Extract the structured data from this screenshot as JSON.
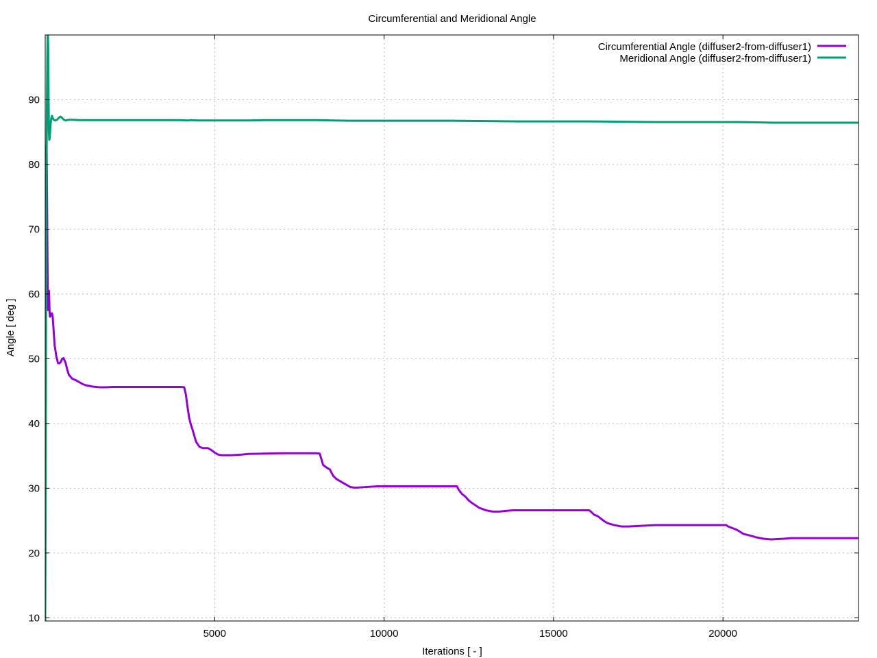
{
  "chart_data": {
    "type": "line",
    "title": "Circumferential and Meridional Angle",
    "xlabel": "Iterations [ - ]",
    "ylabel": "Angle [ deg ]",
    "xlim": [
      0,
      24000
    ],
    "ylim": [
      9.5,
      100
    ],
    "xticks": [
      5000,
      10000,
      15000,
      20000
    ],
    "yticks": [
      10,
      20,
      30,
      40,
      50,
      60,
      70,
      80,
      90
    ],
    "grid": true,
    "legend_position": "top-right",
    "series": [
      {
        "name": "Circumferential Angle (diffuser2-from-diffuser1)",
        "color": "#9400d3",
        "x": [
          0,
          10,
          20,
          30,
          40,
          50,
          60,
          70,
          80,
          90,
          100,
          110,
          120,
          130,
          140,
          150,
          160,
          170,
          180,
          200,
          220,
          240,
          280,
          330,
          380,
          420,
          460,
          500,
          540,
          600,
          650,
          700,
          750,
          800,
          900,
          1000,
          1100,
          1200,
          1400,
          1600,
          1800,
          2000,
          2500,
          3000,
          3500,
          4000,
          4100,
          4150,
          4200,
          4250,
          4300,
          4350,
          4450,
          4550,
          4650,
          4800,
          4900,
          5000,
          5100,
          5200,
          5500,
          5800,
          6000,
          6500,
          7000,
          7500,
          8000,
          8100,
          8150,
          8200,
          8300,
          8400,
          8450,
          8500,
          8600,
          8700,
          8800,
          8900,
          9000,
          9100,
          9200,
          9500,
          9800,
          10000,
          10500,
          11000,
          11500,
          12000,
          12100,
          12150,
          12200,
          12300,
          12350,
          12400,
          12500,
          12600,
          12800,
          13000,
          13200,
          13400,
          13600,
          13800,
          14000,
          14500,
          15000,
          15500,
          16000,
          16050,
          16100,
          16200,
          16300,
          16400,
          16500,
          16600,
          16800,
          17000,
          17200,
          17400,
          17600,
          17800,
          18000,
          18500,
          19000,
          19500,
          20000,
          20100,
          20150,
          20300,
          20400,
          20500,
          20600,
          20800,
          21000,
          21200,
          21400,
          21600,
          21800,
          22000,
          22500,
          23000,
          23500,
          24000
        ],
        "y": [
          23.5,
          50,
          72,
          82,
          83,
          78,
          70,
          63,
          58,
          57.5,
          58,
          60.5,
          59,
          57,
          56.5,
          56.5,
          57,
          57,
          56.8,
          57,
          56.5,
          55,
          52,
          50.3,
          49.3,
          49.3,
          49.5,
          50.0,
          50.1,
          49.4,
          48.3,
          47.5,
          47.2,
          46.9,
          46.7,
          46.4,
          46.1,
          45.9,
          45.7,
          45.6,
          45.6,
          45.65,
          45.65,
          45.65,
          45.65,
          45.65,
          45.6,
          44.5,
          42.5,
          40.8,
          39.8,
          39.0,
          37.2,
          36.4,
          36.2,
          36.2,
          35.9,
          35.5,
          35.2,
          35.1,
          35.1,
          35.2,
          35.3,
          35.35,
          35.4,
          35.4,
          35.4,
          35.35,
          34.5,
          33.6,
          33.2,
          32.9,
          32.4,
          31.9,
          31.4,
          31.1,
          30.8,
          30.5,
          30.2,
          30.1,
          30.1,
          30.2,
          30.3,
          30.3,
          30.3,
          30.3,
          30.3,
          30.3,
          30.3,
          30.3,
          29.8,
          29.1,
          28.9,
          28.7,
          28.1,
          27.7,
          27.0,
          26.6,
          26.4,
          26.4,
          26.5,
          26.6,
          26.6,
          26.6,
          26.6,
          26.6,
          26.6,
          26.6,
          26.4,
          25.9,
          25.7,
          25.3,
          24.9,
          24.6,
          24.3,
          24.1,
          24.1,
          24.15,
          24.2,
          24.25,
          24.3,
          24.3,
          24.3,
          24.3,
          24.3,
          24.3,
          24.1,
          23.8,
          23.6,
          23.3,
          22.95,
          22.7,
          22.4,
          22.2,
          22.1,
          22.15,
          22.2,
          22.3,
          22.3,
          22.3,
          22.3,
          22.3
        ]
      },
      {
        "name": "Meridional Angle (diffuser2-from-diffuser1)",
        "color": "#009e73",
        "x": [
          0,
          8,
          16,
          24,
          32,
          40,
          50,
          60,
          70,
          80,
          90,
          100,
          110,
          120,
          130,
          140,
          150,
          160,
          180,
          200,
          220,
          250,
          300,
          350,
          400,
          450,
          500,
          550,
          600,
          700,
          800,
          1000,
          1500,
          2000,
          3000,
          4000,
          4200,
          4300,
          4500,
          5000,
          6000,
          6500,
          7000,
          8000,
          8500,
          9000,
          10000,
          11000,
          12000,
          13000,
          14000,
          15000,
          16000,
          17000,
          18000,
          19000,
          20000,
          20500,
          21000,
          21500,
          22000,
          23000,
          24000
        ],
        "y": [
          9.5,
          20,
          35,
          55,
          70,
          80,
          89,
          96,
          100,
          100,
          98,
          90,
          85,
          83.8,
          84,
          84.8,
          85.5,
          86.3,
          87.2,
          87.5,
          87.2,
          86.9,
          86.8,
          86.9,
          87.2,
          87.4,
          87.2,
          86.9,
          86.8,
          86.9,
          86.9,
          86.85,
          86.85,
          86.85,
          86.85,
          86.85,
          86.8,
          86.85,
          86.8,
          86.8,
          86.8,
          86.85,
          86.85,
          86.85,
          86.8,
          86.75,
          86.75,
          86.75,
          86.75,
          86.7,
          86.65,
          86.65,
          86.65,
          86.6,
          86.55,
          86.55,
          86.55,
          86.55,
          86.5,
          86.45,
          86.45,
          86.45,
          86.45
        ]
      }
    ]
  }
}
